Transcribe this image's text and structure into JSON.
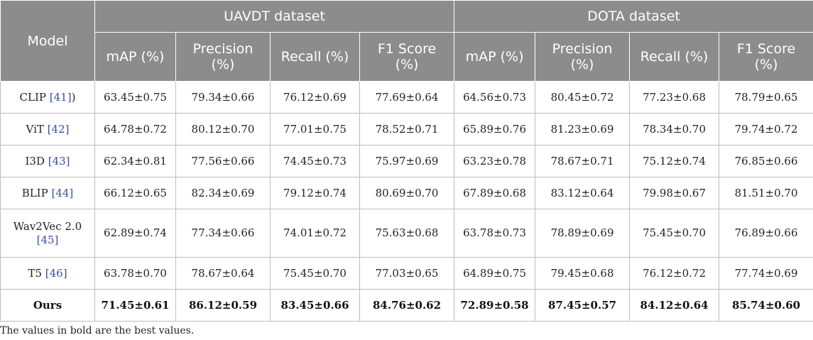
{
  "header": {
    "model": "Model",
    "groups": [
      "UAVDT dataset",
      "DOTA dataset"
    ],
    "metrics": [
      "mAP (%)",
      "Precision (%)",
      "Recall (%)",
      "F1 Score (%)",
      "mAP (%)",
      "Precision (%)",
      "Recall (%)",
      "F1 Score (%)"
    ]
  },
  "rows": [
    {
      "name": "CLIP ",
      "ref": "[41]",
      "suffix": ")",
      "values": [
        "63.45±0.75",
        "79.34±0.66",
        "76.12±0.69",
        "77.69±0.64",
        "64.56±0.73",
        "80.45±0.72",
        "77.23±0.68",
        "78.79±0.65"
      ]
    },
    {
      "name": "ViT ",
      "ref": "[42]",
      "suffix": "",
      "values": [
        "64.78±0.72",
        "80.12±0.70",
        "77.01±0.75",
        "78.52±0.71",
        "65.89±0.76",
        "81.23±0.69",
        "78.34±0.70",
        "79.74±0.72"
      ]
    },
    {
      "name": "I3D ",
      "ref": "[43]",
      "suffix": "",
      "values": [
        "62.34±0.81",
        "77.56±0.66",
        "74.45±0.73",
        "75.97±0.69",
        "63.23±0.78",
        "78.67±0.71",
        "75.12±0.74",
        "76.85±0.66"
      ]
    },
    {
      "name": "BLIP ",
      "ref": "[44]",
      "suffix": "",
      "values": [
        "66.12±0.65",
        "82.34±0.69",
        "79.12±0.74",
        "80.69±0.70",
        "67.89±0.68",
        "83.12±0.64",
        "79.98±0.67",
        "81.51±0.70"
      ]
    },
    {
      "name": "Wav2Vec 2.0 ",
      "ref": "[45]",
      "suffix": "",
      "values": [
        "62.89±0.74",
        "77.34±0.66",
        "74.01±0.72",
        "75.63±0.68",
        "63.78±0.73",
        "78.89±0.69",
        "75.45±0.70",
        "76.89±0.66"
      ]
    },
    {
      "name": "T5 ",
      "ref": "[46]",
      "suffix": "",
      "values": [
        "63.78±0.70",
        "78.67±0.64",
        "75.45±0.70",
        "77.03±0.65",
        "64.89±0.75",
        "79.45±0.68",
        "76.12±0.72",
        "77.74±0.69"
      ]
    },
    {
      "name": "Ours",
      "ref": "",
      "suffix": "",
      "values": [
        "71.45±0.61",
        "86.12±0.59",
        "83.45±0.66",
        "84.76±0.62",
        "72.89±0.58",
        "87.45±0.57",
        "84.12±0.64",
        "85.74±0.60"
      ]
    }
  ],
  "footnote": "The values in bold are the best values."
}
